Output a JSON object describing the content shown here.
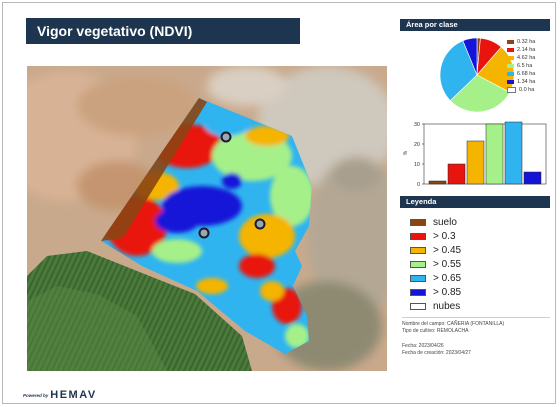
{
  "title": "Vigor vegetativo (NDVI)",
  "area_panel": {
    "heading": "Área por clase",
    "items": [
      {
        "label": "0.32 ha",
        "color": "#8b4513"
      },
      {
        "label": "2.14 ha",
        "color": "#e8150e"
      },
      {
        "label": "4.62 ha",
        "color": "#f5b400"
      },
      {
        "label": "6.5 ha",
        "color": "#a6f08a"
      },
      {
        "label": "6.68 ha",
        "color": "#2fb4f0"
      },
      {
        "label": "1.34 ha",
        "color": "#1414d8"
      },
      {
        "label": "0.0 ha",
        "color": "#ffffff"
      }
    ]
  },
  "chart_data": [
    {
      "type": "pie",
      "title": "",
      "labels": [
        "0.32 ha",
        "2.14 ha",
        "4.62 ha",
        "6.5 ha",
        "6.68 ha",
        "1.34 ha",
        "0.0 ha"
      ],
      "values": [
        0.32,
        2.14,
        4.62,
        6.5,
        6.68,
        1.34,
        0.0
      ],
      "colors": [
        "#8b4513",
        "#e8150e",
        "#f5b400",
        "#a6f08a",
        "#2fb4f0",
        "#1414d8",
        "#ffffff"
      ]
    },
    {
      "type": "bar",
      "title": "",
      "ylabel": "%",
      "ylim": [
        0,
        30
      ],
      "yticks": [
        "0",
        "10",
        "20",
        "30"
      ],
      "values": [
        1.5,
        10,
        21.5,
        30,
        31,
        6
      ],
      "colors": [
        "#8b4513",
        "#e8150e",
        "#f5b400",
        "#a6f08a",
        "#2fb4f0",
        "#1414d8"
      ]
    }
  ],
  "legend": {
    "heading": "Leyenda",
    "items": [
      {
        "label": "suelo",
        "color": "#8b4513"
      },
      {
        "label": "> 0.3",
        "color": "#e8150e"
      },
      {
        "label": "> 0.45",
        "color": "#f5b400"
      },
      {
        "label": "> 0.55",
        "color": "#a6f08a"
      },
      {
        "label": "> 0.65",
        "color": "#2fb4f0"
      },
      {
        "label": "> 0.85",
        "color": "#1414d8"
      },
      {
        "label": "nubes",
        "color": "#ffffff"
      }
    ]
  },
  "info": {
    "field_name": "Nombre del campo: CAÑERIA (FONTANILLA)",
    "crop_type": "Tipo de cultivo: REMOLACHA",
    "date": "Fecha: 2023/04/26",
    "created": "Fecha de creación: 2023/04/27"
  },
  "brand": {
    "powered": "Powered by",
    "logo": "HEMAV"
  }
}
